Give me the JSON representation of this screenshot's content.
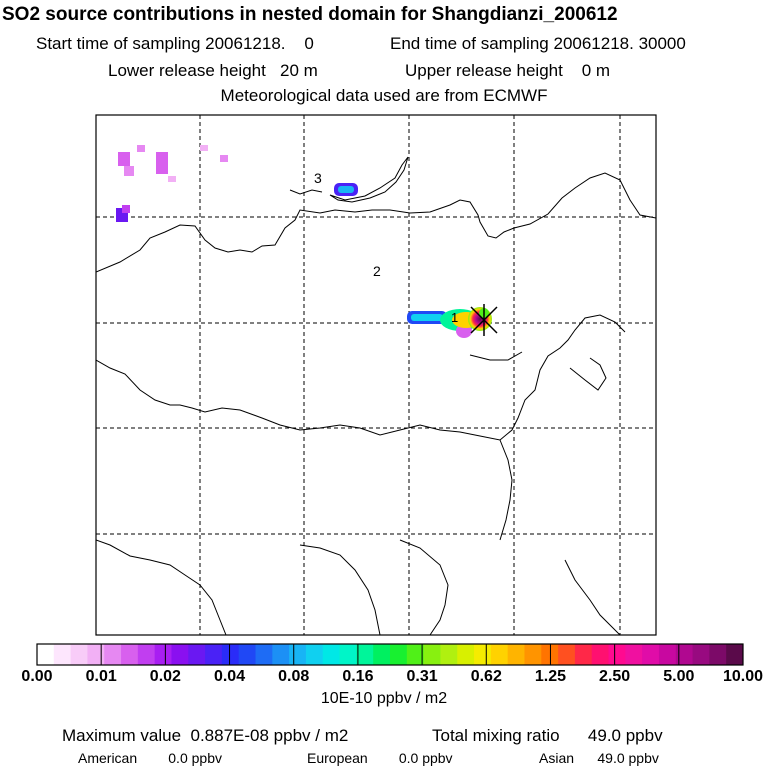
{
  "header": {
    "title": "SO2 source contributions in nested domain for Shangdianzi_200612",
    "start_label": "Start time of sampling",
    "start_value": "20061218.    0",
    "end_label": "End time of sampling",
    "end_value": "20061218. 30000",
    "lower_label": "Lower release height",
    "lower_value": "20 m",
    "upper_label": "Upper release height",
    "upper_value": "0 m",
    "met_line": "Meteorological data used are from ECMWF"
  },
  "map": {
    "region_labels": [
      "1",
      "2",
      "3"
    ]
  },
  "colorbar": {
    "tick_labels": [
      "0.00",
      "0.01",
      "0.02",
      "0.04",
      "0.08",
      "0.16",
      "0.31",
      "0.62",
      "1.25",
      "2.50",
      "5.00",
      "10.00"
    ],
    "unit": "10E-10 ppbv / m2",
    "colors": [
      "#ffffff",
      "#fde6fd",
      "#f8ccf8",
      "#f2b0f5",
      "#e688f2",
      "#d860ee",
      "#c13ef0",
      "#a81ef2",
      "#8a10f0",
      "#6a18f2",
      "#4a22f6",
      "#2a2cf8",
      "#2048f5",
      "#1e6cf5",
      "#1c90f5",
      "#18b4f5",
      "#10d0f0",
      "#00e8e6",
      "#00f5c8",
      "#00f59a",
      "#00f060",
      "#18f030",
      "#50f018",
      "#88f010",
      "#b0f010",
      "#d8f000",
      "#f5ec00",
      "#ffd200",
      "#ffb400",
      "#ff9400",
      "#ff7400",
      "#ff5020",
      "#ff2848",
      "#ff1070",
      "#ff0a90",
      "#f010a0",
      "#e00ca8",
      "#c808a0",
      "#b00890",
      "#980a80",
      "#7c0a68",
      "#5a0a4a"
    ]
  },
  "footer": {
    "max_label": "Maximum value",
    "max_value": "0.887E-08 ppbv / m2",
    "total_label": "Total mixing ratio",
    "total_value": "49.0 ppbv",
    "regions": [
      {
        "name": "American",
        "value": "0.0 ppbv"
      },
      {
        "name": "European",
        "value": "0.0 ppbv"
      },
      {
        "name": "Asian",
        "value": "49.0 ppbv"
      }
    ]
  }
}
